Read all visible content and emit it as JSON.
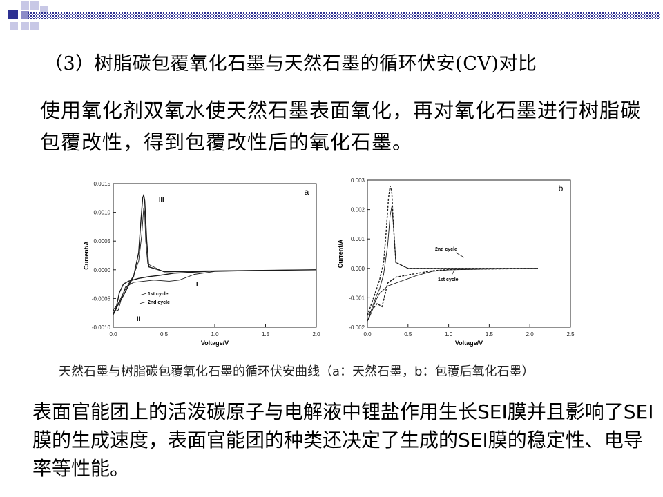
{
  "slide": {
    "title": "（3）树脂碳包覆氧化石墨与天然石墨的循环伏安(CV)对比",
    "paragraph1": "使用氧化剂双氧水使天然石墨表面氧化，再对氧化石墨进行树脂碳包覆改性，得到包覆改性后的氧化石墨。",
    "caption": "天然石墨与树脂碳包覆氧化石墨的循环伏安曲线（a：天然石墨，b：包覆后氧化石墨）",
    "paragraph2": "表面官能团上的活泼碳原子与电解液中锂盐作用生长SEI膜并且影响了SEI膜的生成速度，表面官能团的种类还决定了生成的SEI膜的稳定性、电导率等性能。"
  },
  "colors": {
    "accent_navy": "#2e3192",
    "accent_light": "#c8c8e6",
    "accent_mid": "#8c8cc8"
  },
  "chart_data": [
    {
      "type": "line",
      "panel_label": "a",
      "xlabel": "Voltage/V",
      "ylabel": "Current/A",
      "xlim": [
        0.0,
        2.0
      ],
      "ylim": [
        -0.001,
        0.0015
      ],
      "x_ticks": [
        "0.0",
        "0.5",
        "1.0",
        "1.5",
        "2.0"
      ],
      "y_ticks": [
        "0.0015",
        "0.0010",
        "0.0005",
        "0.0000",
        "-0.0005",
        "-0.0010"
      ],
      "series": [
        {
          "name": "1st cycle",
          "points": [
            [
              0.0,
              -0.0007
            ],
            [
              0.05,
              -0.00058
            ],
            [
              0.1,
              -0.0004
            ],
            [
              0.15,
              -0.00025
            ],
            [
              0.2,
              -0.0001
            ],
            [
              0.25,
              0.00015
            ],
            [
              0.28,
              0.0006
            ],
            [
              0.3,
              0.00108
            ],
            [
              0.31,
              0.00098
            ],
            [
              0.32,
              0.0005
            ],
            [
              0.34,
              0.0001
            ],
            [
              0.5,
              -4e-05
            ],
            [
              1.0,
              -2e-05
            ],
            [
              1.5,
              -1e-05
            ],
            [
              2.0,
              0.0
            ],
            [
              1.5,
              -1e-05
            ],
            [
              1.0,
              -3e-05
            ],
            [
              0.8,
              -8e-05
            ],
            [
              0.65,
              -0.00018
            ],
            [
              0.55,
              -0.0002
            ],
            [
              0.4,
              -0.00018
            ],
            [
              0.3,
              -0.0002
            ],
            [
              0.2,
              -0.00022
            ],
            [
              0.12,
              -0.0003
            ],
            [
              0.08,
              -0.0005
            ],
            [
              0.05,
              -0.0007
            ],
            [
              0.02,
              -0.00072
            ],
            [
              0.0,
              -0.0007
            ]
          ]
        },
        {
          "name": "2nd cycle",
          "points": [
            [
              0.0,
              -0.00078
            ],
            [
              0.05,
              -0.0006
            ],
            [
              0.1,
              -0.00045
            ],
            [
              0.15,
              -0.00028
            ],
            [
              0.2,
              -0.00012
            ],
            [
              0.25,
              0.0003
            ],
            [
              0.27,
              0.0008
            ],
            [
              0.29,
              0.00125
            ],
            [
              0.3,
              0.0013
            ],
            [
              0.31,
              0.0012
            ],
            [
              0.33,
              0.0005
            ],
            [
              0.35,
              5e-05
            ],
            [
              0.5,
              -3e-05
            ],
            [
              1.0,
              -2e-05
            ],
            [
              2.0,
              0.0
            ],
            [
              1.0,
              -2e-05
            ],
            [
              0.6,
              -6e-05
            ],
            [
              0.45,
              -0.0001
            ],
            [
              0.35,
              -0.00012
            ],
            [
              0.25,
              -0.00015
            ],
            [
              0.15,
              -0.0002
            ],
            [
              0.1,
              -0.00025
            ],
            [
              0.06,
              -0.0004
            ],
            [
              0.03,
              -0.00065
            ],
            [
              0.0,
              -0.00078
            ]
          ]
        }
      ],
      "annotations": [
        "III",
        "II",
        "I",
        "1st cycle",
        "2nd cycle"
      ]
    },
    {
      "type": "line",
      "panel_label": "b",
      "xlabel": "Voltage/V",
      "ylabel": "Current/A",
      "xlim": [
        0.0,
        2.5
      ],
      "ylim": [
        -0.002,
        0.003
      ],
      "x_ticks": [
        "0.0",
        "0.5",
        "1.0",
        "1.5",
        "2.0",
        "2.5"
      ],
      "y_ticks": [
        "0.003",
        "0.002",
        "0.001",
        "0.000",
        "-0.001",
        "-0.002"
      ],
      "series": [
        {
          "name": "1st cycle",
          "points": [
            [
              0.0,
              -0.0018
            ],
            [
              0.05,
              -0.0014
            ],
            [
              0.1,
              -0.001
            ],
            [
              0.15,
              -0.0007
            ],
            [
              0.2,
              -0.0002
            ],
            [
              0.25,
              0.0008
            ],
            [
              0.28,
              0.0018
            ],
            [
              0.3,
              0.0021
            ],
            [
              0.32,
              0.0015
            ],
            [
              0.35,
              0.0002
            ],
            [
              0.5,
              0.0
            ],
            [
              1.0,
              0.0
            ],
            [
              2.1,
              0.0
            ],
            [
              1.5,
              -2e-05
            ],
            [
              1.0,
              -5e-05
            ],
            [
              0.8,
              -0.0001
            ],
            [
              0.6,
              -0.00025
            ],
            [
              0.4,
              -0.00045
            ],
            [
              0.25,
              -0.0006
            ],
            [
              0.15,
              -0.00085
            ],
            [
              0.1,
              -0.0011
            ],
            [
              0.05,
              -0.0015
            ],
            [
              0.0,
              -0.0018
            ]
          ]
        },
        {
          "name": "2nd cycle",
          "points": [
            [
              0.0,
              -0.0016
            ],
            [
              0.05,
              -0.0012
            ],
            [
              0.1,
              -0.0008
            ],
            [
              0.15,
              -0.0004
            ],
            [
              0.2,
              0.0002
            ],
            [
              0.23,
              0.0012
            ],
            [
              0.26,
              0.0024
            ],
            [
              0.28,
              0.0028
            ],
            [
              0.3,
              0.0026
            ],
            [
              0.32,
              0.0015
            ],
            [
              0.35,
              0.0002
            ],
            [
              0.5,
              0.0
            ],
            [
              1.0,
              0.0
            ],
            [
              2.1,
              0.0
            ],
            [
              1.5,
              -2e-05
            ],
            [
              1.0,
              -4e-05
            ],
            [
              0.8,
              -8e-05
            ],
            [
              0.55,
              -0.0002
            ],
            [
              0.35,
              -0.0003
            ],
            [
              0.25,
              -0.0005
            ],
            [
              0.18,
              -0.0013
            ],
            [
              0.12,
              -0.0012
            ],
            [
              0.06,
              -0.0014
            ],
            [
              0.0,
              -0.0016
            ]
          ]
        }
      ],
      "annotations": [
        "2nd cycle",
        "1st cycle"
      ]
    }
  ]
}
